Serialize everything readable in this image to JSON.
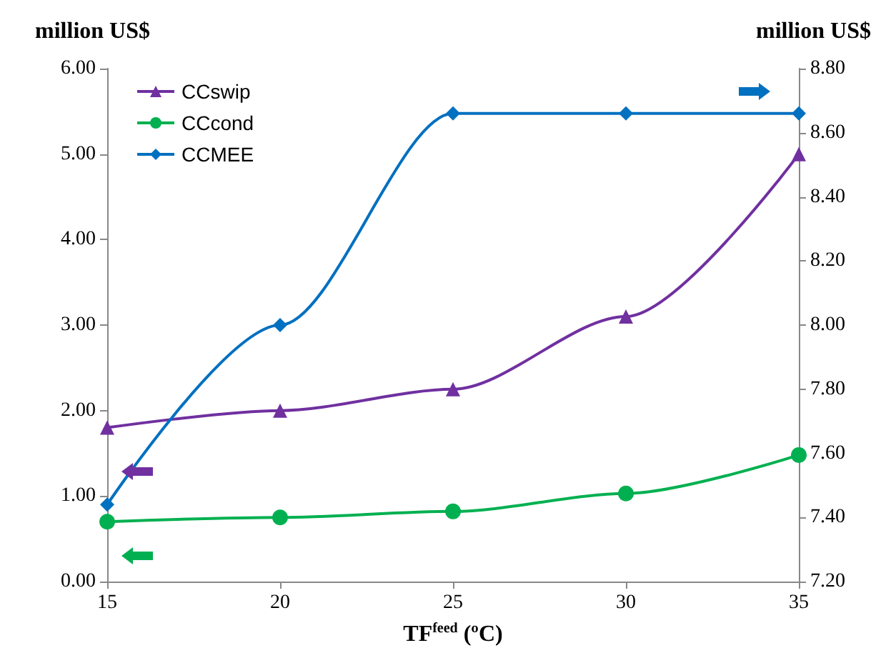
{
  "chart_data": {
    "type": "line",
    "xlabel": "TF$^{feed}$ (ºC)",
    "ylabel": "million US$",
    "y2label": "million US$",
    "x": [
      15,
      20,
      25,
      30,
      35
    ],
    "series": [
      {
        "name": "CCswip",
        "color": "#7030a0",
        "marker": "triangle",
        "values": [
          1.8,
          2.0,
          2.25,
          3.1,
          5.0
        ]
      },
      {
        "name": "CCcond",
        "color": "#00b050",
        "marker": "circle",
        "values": [
          0.7,
          0.75,
          0.82,
          1.03,
          1.48
        ]
      },
      {
        "name": "CCMEE",
        "color": "#0070c0",
        "marker": "diamond",
        "axis": "y2",
        "values": [
          7.44,
          8.0,
          8.66,
          8.66,
          8.66
        ]
      }
    ],
    "xlim": [
      15,
      35
    ],
    "xticks": [
      15,
      20,
      25,
      30,
      35
    ],
    "ylim": [
      0,
      6
    ],
    "yticks": [
      {
        "value": 0,
        "label": "0.00"
      },
      {
        "value": 1,
        "label": "1.00"
      },
      {
        "value": 2,
        "label": "2.00"
      },
      {
        "value": 3,
        "label": "3.00"
      },
      {
        "value": 4,
        "label": "4.00"
      },
      {
        "value": 5,
        "label": "5.00"
      },
      {
        "value": 6,
        "label": "6.00"
      }
    ],
    "y2lim": [
      7.2,
      8.8
    ],
    "y2ticks": [
      {
        "value": 7.2,
        "label": "7.20"
      },
      {
        "value": 7.4,
        "label": "7.40"
      },
      {
        "value": 7.6,
        "label": "7.60"
      },
      {
        "value": 7.8,
        "label": "7.80"
      },
      {
        "value": 8.0,
        "label": "8.00"
      },
      {
        "value": 8.2,
        "label": "8.20"
      },
      {
        "value": 8.4,
        "label": "8.40"
      },
      {
        "value": 8.6,
        "label": "8.60"
      },
      {
        "value": 8.8,
        "label": "8.80"
      }
    ],
    "grid": false,
    "legend": "top left"
  }
}
